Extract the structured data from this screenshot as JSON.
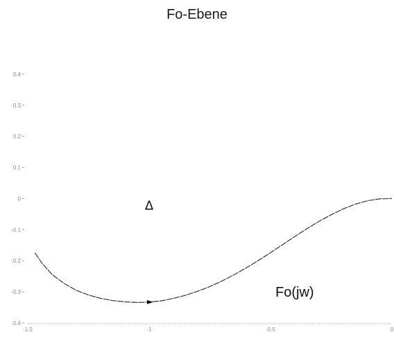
{
  "chart_data": {
    "type": "line",
    "title": "Fo-Ebene",
    "xlabel": "",
    "ylabel": "",
    "xlim": [
      -1.5,
      0
    ],
    "ylim": [
      -0.4,
      0.5
    ],
    "x_ticks": [
      {
        "value": -1.5,
        "label": "-1.5"
      },
      {
        "value": -1,
        "label": "-1"
      },
      {
        "value": -0.5,
        "label": "-0.5"
      },
      {
        "value": 0,
        "label": "0"
      }
    ],
    "y_ticks": [
      {
        "value": 0.4,
        "label": "0.4"
      },
      {
        "value": 0.3,
        "label": "0.3"
      },
      {
        "value": 0.2,
        "label": "0.2"
      },
      {
        "value": 0.1,
        "label": "0.1"
      },
      {
        "value": 0,
        "label": "0"
      },
      {
        "value": -0.1,
        "label": "-0.1"
      },
      {
        "value": -0.2,
        "label": "-0.2"
      },
      {
        "value": -0.3,
        "label": "-0.3"
      },
      {
        "value": -0.4,
        "label": "-0.4"
      }
    ],
    "grid": false,
    "series": [
      {
        "name": "",
        "color": "#333333",
        "x": [
          -1.47,
          -1.44,
          -1.4,
          -1.35,
          -1.3,
          -1.25,
          -1.2,
          -1.15,
          -1.1,
          -1.05,
          -1.0,
          -0.95,
          -0.9,
          -0.85,
          -0.8,
          -0.75,
          -0.7,
          -0.65,
          -0.6,
          -0.55,
          -0.5,
          -0.45,
          -0.4,
          -0.35,
          -0.3,
          -0.25,
          -0.2,
          -0.15,
          -0.1,
          -0.05,
          0.0
        ],
        "y": [
          -0.175,
          -0.209,
          -0.244,
          -0.273,
          -0.295,
          -0.31,
          -0.321,
          -0.328,
          -0.332,
          -0.334,
          -0.333,
          -0.329,
          -0.321,
          -0.311,
          -0.298,
          -0.283,
          -0.265,
          -0.245,
          -0.223,
          -0.199,
          -0.174,
          -0.148,
          -0.122,
          -0.097,
          -0.073,
          -0.052,
          -0.033,
          -0.018,
          -0.007,
          -0.001,
          0.0
        ]
      }
    ],
    "markers": [
      {
        "name": "arrow",
        "x": -1.0,
        "y": -0.333,
        "direction": "right"
      }
    ],
    "annotations": [
      {
        "text": "Δ",
        "x": -1.0,
        "y": -0.02
      },
      {
        "text": "Fo(jw)",
        "x": -0.48,
        "y": -0.3
      }
    ]
  },
  "style": {
    "curve_color": "#333333",
    "axis_color": "#9a9a9a",
    "tick_color": "#8a8a8a",
    "text_color": "#111111"
  }
}
